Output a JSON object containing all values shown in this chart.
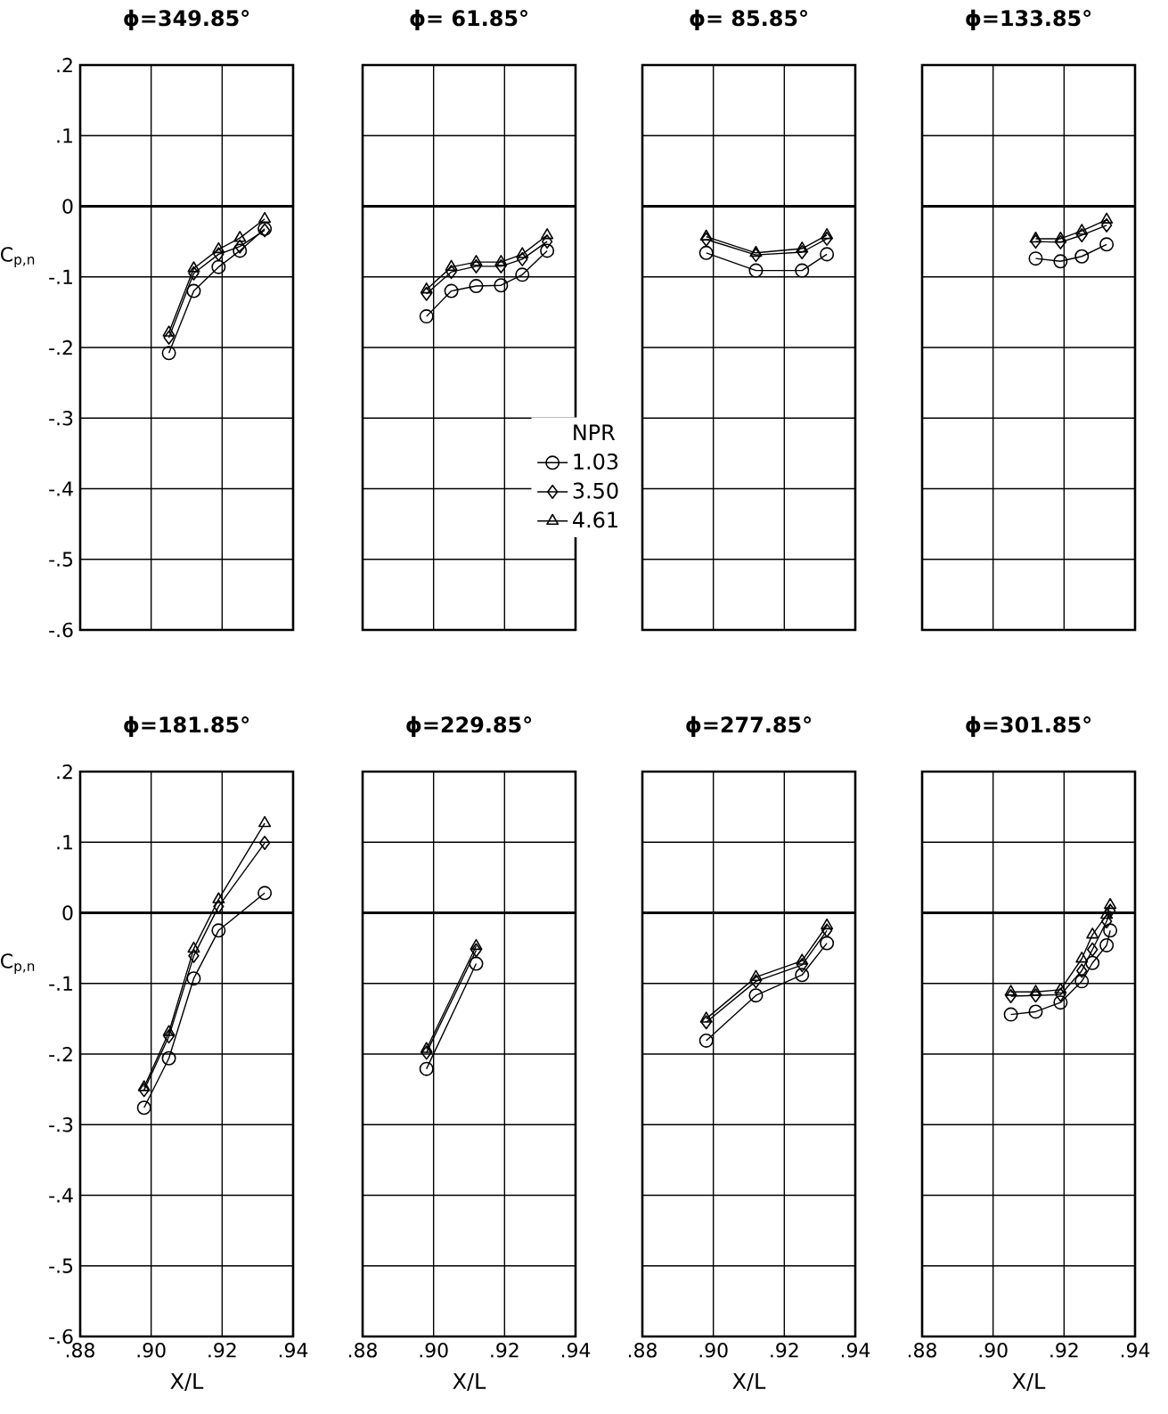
{
  "chart_data": [
    {
      "type": "line",
      "title": "ϕ=349.85°",
      "ylabel": "C$_{p,n}$",
      "xlim": [
        0.88,
        0.94
      ],
      "ylim": [
        -0.6,
        0.2
      ],
      "xticks": [
        {
          "value": 0.88,
          "label": null
        },
        {
          "value": 0.9,
          "label": null
        },
        {
          "value": 0.92,
          "label": null
        },
        {
          "value": 0.94,
          "label": null
        }
      ],
      "yticks": [
        {
          "value": -0.6,
          "label": "-.6"
        },
        {
          "value": -0.5,
          "label": "-.5"
        },
        {
          "value": -0.4,
          "label": "-.4"
        },
        {
          "value": -0.3,
          "label": "-.3"
        },
        {
          "value": -0.2,
          "label": "-.2"
        },
        {
          "value": -0.1,
          "label": "-.1"
        },
        0,
        {
          "value": 0.1,
          "label": ".1"
        },
        {
          "value": 0.2,
          "label": ".2"
        }
      ],
      "grid": true,
      "tick_labels": "y",
      "ref_lines": [
        {
          "axis": "y",
          "value": 0
        }
      ],
      "series": [
        {
          "color": "#000000",
          "marker": "circle",
          "x": [
            0.905,
            0.912,
            0.919,
            0.925,
            0.932
          ],
          "values": [
            -0.208,
            -0.12,
            -0.086,
            -0.063,
            -0.032
          ]
        },
        {
          "color": "#000000",
          "marker": "diamond",
          "x": [
            0.905,
            0.912,
            0.919,
            0.925,
            0.932
          ],
          "values": [
            -0.186,
            -0.095,
            -0.068,
            -0.057,
            -0.034
          ]
        },
        {
          "color": "#000000",
          "marker": "triangle",
          "x": [
            0.905,
            0.912,
            0.919,
            0.925,
            0.932
          ],
          "values": [
            -0.179,
            -0.088,
            -0.061,
            -0.045,
            -0.018
          ]
        }
      ]
    },
    {
      "type": "line",
      "title": "ϕ= 61.85°",
      "xlim": [
        0.88,
        0.94
      ],
      "ylim": [
        -0.6,
        0.2
      ],
      "xticks": [
        {
          "value": 0.88,
          "label": null
        },
        {
          "value": 0.9,
          "label": null
        },
        {
          "value": 0.92,
          "label": null
        },
        {
          "value": 0.94,
          "label": null
        }
      ],
      "yticks": [
        {
          "value": -0.6,
          "label": null
        },
        {
          "value": -0.5,
          "label": null
        },
        {
          "value": -0.4,
          "label": null
        },
        {
          "value": -0.3,
          "label": null
        },
        {
          "value": -0.2,
          "label": null
        },
        {
          "value": -0.1,
          "label": null
        },
        {
          "value": 0,
          "label": null
        },
        {
          "value": 0.1,
          "label": null
        },
        {
          "value": 0.2,
          "label": null
        }
      ],
      "grid": true,
      "tick_labels": false,
      "ref_lines": [
        {
          "axis": "y",
          "value": 0
        }
      ],
      "legend": "right",
      "legend_title": "NPR",
      "series": [
        {
          "name": "1.03",
          "color": "#000000",
          "marker": "circle",
          "x": [
            0.898,
            0.905,
            0.912,
            0.919,
            0.925,
            0.932
          ],
          "values": [
            -0.156,
            -0.12,
            -0.113,
            -0.112,
            -0.097,
            -0.063
          ]
        },
        {
          "name": "3.50",
          "color": "#000000",
          "marker": "diamond",
          "x": [
            0.898,
            0.905,
            0.912,
            0.919,
            0.925,
            0.932
          ],
          "values": [
            -0.124,
            -0.093,
            -0.085,
            -0.085,
            -0.075,
            -0.05
          ]
        },
        {
          "name": "4.61",
          "color": "#000000",
          "marker": "triangle",
          "x": [
            0.898,
            0.905,
            0.912,
            0.919,
            0.925,
            0.932
          ],
          "values": [
            -0.118,
            -0.086,
            -0.079,
            -0.079,
            -0.068,
            -0.041
          ]
        }
      ]
    },
    {
      "type": "line",
      "title": "ϕ= 85.85°",
      "xlim": [
        0.88,
        0.94
      ],
      "ylim": [
        -0.6,
        0.2
      ],
      "xticks": [
        {
          "value": 0.88,
          "label": null
        },
        {
          "value": 0.9,
          "label": null
        },
        {
          "value": 0.92,
          "label": null
        },
        {
          "value": 0.94,
          "label": null
        }
      ],
      "yticks": [
        {
          "value": -0.6,
          "label": null
        },
        {
          "value": -0.5,
          "label": null
        },
        {
          "value": -0.4,
          "label": null
        },
        {
          "value": -0.3,
          "label": null
        },
        {
          "value": -0.2,
          "label": null
        },
        {
          "value": -0.1,
          "label": null
        },
        {
          "value": 0,
          "label": null
        },
        {
          "value": 0.1,
          "label": null
        },
        {
          "value": 0.2,
          "label": null
        }
      ],
      "grid": true,
      "tick_labels": false,
      "ref_lines": [
        {
          "axis": "y",
          "value": 0
        }
      ],
      "series": [
        {
          "color": "#000000",
          "marker": "circle",
          "x": [
            0.898,
            0.912,
            0.925,
            0.932
          ],
          "values": [
            -0.066,
            -0.091,
            -0.091,
            -0.068
          ]
        },
        {
          "color": "#000000",
          "marker": "diamond",
          "x": [
            0.898,
            0.912,
            0.925,
            0.932
          ],
          "values": [
            -0.047,
            -0.069,
            -0.065,
            -0.046
          ]
        },
        {
          "color": "#000000",
          "marker": "triangle",
          "x": [
            0.898,
            0.912,
            0.925,
            0.932
          ],
          "values": [
            -0.043,
            -0.066,
            -0.06,
            -0.041
          ]
        }
      ]
    },
    {
      "type": "line",
      "title": "ϕ=133.85°",
      "xlim": [
        0.88,
        0.94
      ],
      "ylim": [
        -0.6,
        0.2
      ],
      "xticks": [
        {
          "value": 0.88,
          "label": null
        },
        {
          "value": 0.9,
          "label": null
        },
        {
          "value": 0.92,
          "label": null
        },
        {
          "value": 0.94,
          "label": null
        }
      ],
      "yticks": [
        {
          "value": -0.6,
          "label": null
        },
        {
          "value": -0.5,
          "label": null
        },
        {
          "value": -0.4,
          "label": null
        },
        {
          "value": -0.3,
          "label": null
        },
        {
          "value": -0.2,
          "label": null
        },
        {
          "value": -0.1,
          "label": null
        },
        {
          "value": 0,
          "label": null
        },
        {
          "value": 0.1,
          "label": null
        },
        {
          "value": 0.2,
          "label": null
        }
      ],
      "grid": true,
      "tick_labels": false,
      "ref_lines": [
        {
          "axis": "y",
          "value": 0
        }
      ],
      "series": [
        {
          "color": "#000000",
          "marker": "circle",
          "x": [
            0.912,
            0.919,
            0.925,
            0.932
          ],
          "values": [
            -0.074,
            -0.078,
            -0.071,
            -0.054
          ]
        },
        {
          "color": "#000000",
          "marker": "diamond",
          "x": [
            0.912,
            0.919,
            0.925,
            0.932
          ],
          "values": [
            -0.05,
            -0.051,
            -0.041,
            -0.027
          ]
        },
        {
          "color": "#000000",
          "marker": "triangle",
          "x": [
            0.912,
            0.919,
            0.925,
            0.932
          ],
          "values": [
            -0.046,
            -0.046,
            -0.035,
            -0.019
          ]
        }
      ]
    },
    {
      "type": "line",
      "title": "ϕ=181.85°",
      "xlabel": "X/L",
      "ylabel": "C$_{p,n}$",
      "xlim": [
        0.88,
        0.94
      ],
      "ylim": [
        -0.6,
        0.2
      ],
      "xticks": [
        {
          "value": 0.88,
          "label": ".88"
        },
        {
          "value": 0.9,
          "label": ".90"
        },
        {
          "value": 0.92,
          "label": ".92"
        },
        {
          "value": 0.94,
          "label": ".94"
        }
      ],
      "yticks": [
        {
          "value": -0.6,
          "label": "-.6"
        },
        {
          "value": -0.5,
          "label": "-.5"
        },
        {
          "value": -0.4,
          "label": "-.4"
        },
        {
          "value": -0.3,
          "label": "-.3"
        },
        {
          "value": -0.2,
          "label": "-.2"
        },
        {
          "value": -0.1,
          "label": "-.1"
        },
        0,
        {
          "value": 0.1,
          "label": ".1"
        },
        {
          "value": 0.2,
          "label": ".2"
        }
      ],
      "grid": true,
      "ref_lines": [
        {
          "axis": "y",
          "value": 0
        }
      ],
      "series": [
        {
          "color": "#000000",
          "marker": "circle",
          "x": [
            0.898,
            0.905,
            0.912,
            0.919,
            0.932
          ],
          "values": [
            -0.276,
            -0.206,
            -0.093,
            -0.025,
            0.028
          ]
        },
        {
          "color": "#000000",
          "marker": "diamond",
          "x": [
            0.898,
            0.905,
            0.912,
            0.919,
            0.932
          ],
          "values": [
            -0.251,
            -0.175,
            -0.061,
            0.009,
            0.099
          ]
        },
        {
          "color": "#000000",
          "marker": "triangle",
          "x": [
            0.898,
            0.905,
            0.912,
            0.919,
            0.932
          ],
          "values": [
            -0.247,
            -0.169,
            -0.051,
            0.019,
            0.127
          ]
        }
      ]
    },
    {
      "type": "line",
      "title": "ϕ=229.85°",
      "xlabel": "X/L",
      "xlim": [
        0.88,
        0.94
      ],
      "ylim": [
        -0.6,
        0.2
      ],
      "xticks": [
        {
          "value": 0.88,
          "label": ".88"
        },
        {
          "value": 0.9,
          "label": ".90"
        },
        {
          "value": 0.92,
          "label": ".92"
        },
        {
          "value": 0.94,
          "label": ".94"
        }
      ],
      "yticks": [
        {
          "value": -0.6,
          "label": null
        },
        {
          "value": -0.5,
          "label": null
        },
        {
          "value": -0.4,
          "label": null
        },
        {
          "value": -0.3,
          "label": null
        },
        {
          "value": -0.2,
          "label": null
        },
        {
          "value": -0.1,
          "label": null
        },
        {
          "value": 0,
          "label": null
        },
        {
          "value": 0.1,
          "label": null
        },
        {
          "value": 0.2,
          "label": null
        }
      ],
      "grid": true,
      "tick_labels": "x",
      "ref_lines": [
        {
          "axis": "y",
          "value": 0
        }
      ],
      "series": [
        {
          "color": "#000000",
          "marker": "circle",
          "x": [
            0.898,
            0.912
          ],
          "values": [
            -0.221,
            -0.072
          ]
        },
        {
          "color": "#000000",
          "marker": "diamond",
          "x": [
            0.898,
            0.912
          ],
          "values": [
            -0.198,
            -0.053
          ]
        },
        {
          "color": "#000000",
          "marker": "triangle",
          "x": [
            0.898,
            0.912
          ],
          "values": [
            -0.193,
            -0.047
          ]
        }
      ]
    },
    {
      "type": "line",
      "title": "ϕ=277.85°",
      "xlabel": "X/L",
      "xlim": [
        0.88,
        0.94
      ],
      "ylim": [
        -0.6,
        0.2
      ],
      "xticks": [
        {
          "value": 0.88,
          "label": ".88"
        },
        {
          "value": 0.9,
          "label": ".90"
        },
        {
          "value": 0.92,
          "label": ".92"
        },
        {
          "value": 0.94,
          "label": ".94"
        }
      ],
      "yticks": [
        {
          "value": -0.6,
          "label": null
        },
        {
          "value": -0.5,
          "label": null
        },
        {
          "value": -0.4,
          "label": null
        },
        {
          "value": -0.3,
          "label": null
        },
        {
          "value": -0.2,
          "label": null
        },
        {
          "value": -0.1,
          "label": null
        },
        {
          "value": 0,
          "label": null
        },
        {
          "value": 0.1,
          "label": null
        },
        {
          "value": 0.2,
          "label": null
        }
      ],
      "grid": true,
      "tick_labels": "x",
      "ref_lines": [
        {
          "axis": "y",
          "value": 0
        }
      ],
      "series": [
        {
          "color": "#000000",
          "marker": "circle",
          "x": [
            0.898,
            0.912,
            0.925,
            0.932
          ],
          "values": [
            -0.181,
            -0.117,
            -0.088,
            -0.043
          ]
        },
        {
          "color": "#000000",
          "marker": "diamond",
          "x": [
            0.898,
            0.912,
            0.925,
            0.932
          ],
          "values": [
            -0.155,
            -0.097,
            -0.074,
            -0.025
          ]
        },
        {
          "color": "#000000",
          "marker": "triangle",
          "x": [
            0.898,
            0.912,
            0.925,
            0.932
          ],
          "values": [
            -0.15,
            -0.091,
            -0.068,
            -0.018
          ]
        }
      ]
    },
    {
      "type": "line",
      "title": "ϕ=301.85°",
      "xlabel": "X/L",
      "xlim": [
        0.88,
        0.94
      ],
      "ylim": [
        -0.6,
        0.2
      ],
      "xticks": [
        {
          "value": 0.88,
          "label": ".88"
        },
        {
          "value": 0.9,
          "label": ".90"
        },
        {
          "value": 0.92,
          "label": ".92"
        },
        {
          "value": 0.94,
          "label": ".94"
        }
      ],
      "yticks": [
        {
          "value": -0.6,
          "label": null
        },
        {
          "value": -0.5,
          "label": null
        },
        {
          "value": -0.4,
          "label": null
        },
        {
          "value": -0.3,
          "label": null
        },
        {
          "value": -0.2,
          "label": null
        },
        {
          "value": -0.1,
          "label": null
        },
        {
          "value": 0,
          "label": null
        },
        {
          "value": 0.1,
          "label": null
        },
        {
          "value": 0.2,
          "label": null
        }
      ],
      "grid": true,
      "tick_labels": "x",
      "ref_lines": [
        {
          "axis": "y",
          "value": 0
        }
      ],
      "series": [
        {
          "color": "#000000",
          "marker": "circle",
          "x": [
            0.905,
            0.912,
            0.919,
            0.925,
            0.928,
            0.932,
            0.933
          ],
          "values": [
            -0.144,
            -0.14,
            -0.127,
            -0.097,
            -0.071,
            -0.046,
            -0.025
          ]
        },
        {
          "color": "#000000",
          "marker": "diamond",
          "x": [
            0.905,
            0.912,
            0.919,
            0.925,
            0.928,
            0.932,
            0.933
          ],
          "values": [
            -0.118,
            -0.117,
            -0.116,
            -0.082,
            -0.052,
            -0.012,
            0.003
          ]
        },
        {
          "color": "#000000",
          "marker": "triangle",
          "x": [
            0.905,
            0.912,
            0.919,
            0.925,
            0.928,
            0.932,
            0.933
          ],
          "values": [
            -0.112,
            -0.112,
            -0.109,
            -0.065,
            -0.031,
            -0.003,
            0.011
          ]
        }
      ]
    }
  ]
}
